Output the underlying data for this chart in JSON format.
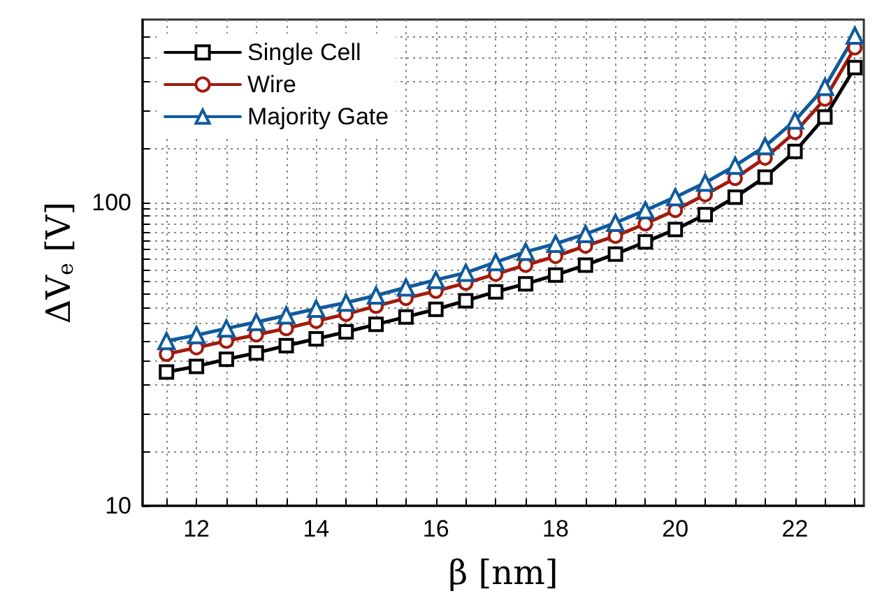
{
  "chart_data": {
    "type": "line",
    "xlabel": "β [nm]",
    "ylabel": "ΔV$_{e}$ [V]",
    "x": [
      11.5,
      12,
      12.5,
      13,
      13.5,
      14,
      14.5,
      15,
      15.5,
      16,
      16.5,
      17,
      17.5,
      18,
      18.5,
      19,
      19.5,
      20,
      20.5,
      21,
      21.5,
      22,
      22.5,
      23
    ],
    "series": [
      {
        "name": "Single Cell",
        "color": "#000000",
        "marker": "square",
        "values": [
          27.6,
          28.8,
          30.4,
          31.9,
          33.7,
          35.5,
          37.4,
          39.6,
          41.9,
          44.4,
          47.4,
          50.7,
          53.9,
          57.6,
          62.1,
          67.5,
          74.0,
          81.4,
          91.0,
          104,
          121,
          147,
          191,
          278
        ]
      },
      {
        "name": "Wire",
        "color": "#a31a0c",
        "marker": "circle",
        "values": [
          31.6,
          33.2,
          34.9,
          36.6,
          38.4,
          40.6,
          42.8,
          45.5,
          48.3,
          51.0,
          54.2,
          58.0,
          62.1,
          66.4,
          71.8,
          77.4,
          85.0,
          94.1,
          106,
          120,
          140,
          170,
          219,
          323
        ]
      },
      {
        "name": "Majority Gate",
        "color": "#0f5a9c",
        "marker": "triangle",
        "values": [
          34.9,
          36.5,
          38.4,
          40.3,
          42.4,
          44.6,
          46.7,
          49.3,
          52.4,
          55.5,
          58.6,
          63.5,
          68.7,
          73.0,
          78.6,
          85.6,
          94.1,
          104,
          116,
          132,
          153,
          186,
          240,
          354
        ]
      }
    ],
    "log": "y",
    "xlim": [
      11.1,
      23.15
    ],
    "ylim": [
      10,
      400
    ],
    "xticks": [
      {
        "value": 11.5,
        "label": null
      },
      12,
      {
        "value": 12.5,
        "label": null
      },
      {
        "value": 13,
        "label": null
      },
      {
        "value": 13.5,
        "label": null
      },
      14,
      {
        "value": 14.5,
        "label": null
      },
      {
        "value": 15,
        "label": null
      },
      {
        "value": 15.5,
        "label": null
      },
      16,
      {
        "value": 16.5,
        "label": null
      },
      {
        "value": 17,
        "label": null
      },
      {
        "value": 17.5,
        "label": null
      },
      18,
      {
        "value": 18.5,
        "label": null
      },
      {
        "value": 19,
        "label": null
      },
      {
        "value": 19.5,
        "label": null
      },
      20,
      {
        "value": 20.5,
        "label": null
      },
      {
        "value": 21,
        "label": null
      },
      {
        "value": 21.5,
        "label": null
      },
      22,
      {
        "value": 22.5,
        "label": null
      },
      {
        "value": 23,
        "label": null
      }
    ],
    "yticks": [
      10,
      {
        "value": 15,
        "label": null
      },
      {
        "value": 20,
        "label": null
      },
      {
        "value": 25,
        "label": null
      },
      {
        "value": 30,
        "label": null
      },
      {
        "value": 35,
        "label": null
      },
      {
        "value": 40,
        "label": null
      },
      {
        "value": 45,
        "label": null
      },
      {
        "value": 50,
        "label": null
      },
      {
        "value": 55,
        "label": null
      },
      {
        "value": 60,
        "label": null
      },
      {
        "value": 65,
        "label": null
      },
      {
        "value": 70,
        "label": null
      },
      {
        "value": 75,
        "label": null
      },
      {
        "value": 80,
        "label": null
      },
      {
        "value": 85,
        "label": null
      },
      {
        "value": 90,
        "label": null
      },
      {
        "value": 95,
        "label": null
      },
      100,
      {
        "value": 150,
        "label": null
      },
      {
        "value": 200,
        "label": null
      },
      {
        "value": 250,
        "label": null
      },
      {
        "value": 300,
        "label": null
      },
      {
        "value": 350,
        "label": null
      }
    ],
    "grid": true,
    "legend": "top left",
    "line_style": "solid"
  }
}
